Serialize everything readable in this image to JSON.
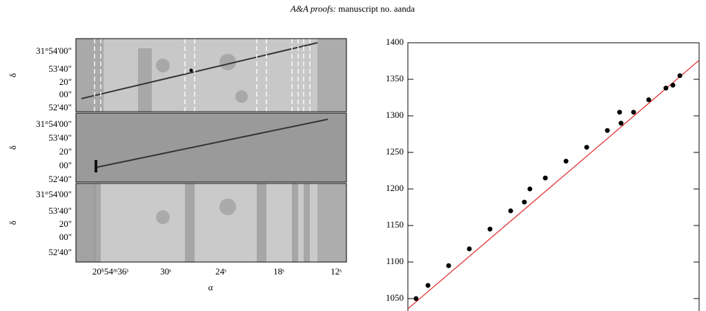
{
  "header": {
    "journal": "A&A proofs:",
    "text": "manuscript no. aanda"
  },
  "image_panels": {
    "y_label": "δ",
    "x_label": "α",
    "y_tick_labels": [
      "31°54'00\"",
      "53'40\"",
      "20\"",
      "00\"",
      "52'40\""
    ],
    "x_tick_labels": [
      "20ʰ54ᵐ36ˢ",
      "30ˢ",
      "24ˢ",
      "18ˢ",
      "12ˢ"
    ]
  },
  "chart_data": {
    "type": "scatter",
    "xlim": [
      0,
      100
    ],
    "ylim": [
      1033,
      1400
    ],
    "yticks": [
      1050,
      1100,
      1150,
      1200,
      1250,
      1300,
      1350,
      1400
    ],
    "series": [
      {
        "color": "#000000",
        "x": [
          2.8,
          6.9,
          14.0,
          21.1,
          28.2,
          35.3,
          40.0,
          41.9,
          47.2,
          54.3,
          61.4,
          68.5,
          73.2,
          72.7,
          77.5,
          82.7,
          88.6,
          91.0,
          93.4
        ],
        "values": [
          1050,
          1068,
          1095,
          1118,
          1145,
          1170,
          1182,
          1200,
          1215,
          1238,
          1257,
          1280,
          1290,
          1305,
          1305,
          1322,
          1338,
          1342,
          1355
        ]
      },
      {
        "color": "#e02020",
        "x": [
          0,
          100
        ],
        "values": [
          1036,
          1376
        ]
      }
    ]
  }
}
